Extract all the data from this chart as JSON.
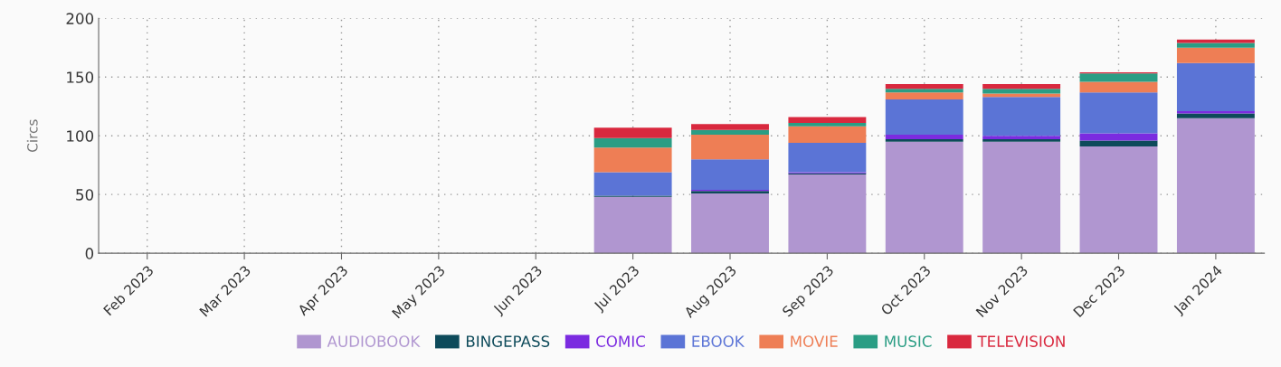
{
  "chart_data": {
    "type": "bar",
    "stacked": true,
    "ylabel": "Circs",
    "categories": [
      "Feb 2023",
      "Mar 2023",
      "Apr 2023",
      "May 2023",
      "Jun 2023",
      "Jul 2023",
      "Aug 2023",
      "Sep 2023",
      "Oct 2023",
      "Nov 2023",
      "Dec 2023",
      "Jan 2024"
    ],
    "series": [
      {
        "name": "AUDIOBOOK",
        "color": "#b096d0",
        "values": [
          0,
          0,
          0,
          0,
          0,
          48,
          51,
          67,
          95,
          95,
          91,
          115
        ]
      },
      {
        "name": "BINGEPASS",
        "color": "#0d4a5a",
        "values": [
          0,
          0,
          0,
          0,
          0,
          1,
          2,
          1,
          2,
          2,
          5,
          4
        ]
      },
      {
        "name": "COMIC",
        "color": "#7b2be0",
        "values": [
          0,
          0,
          0,
          0,
          0,
          0,
          1,
          1,
          4,
          3,
          6,
          2
        ]
      },
      {
        "name": "EBOOK",
        "color": "#5b74d6",
        "values": [
          0,
          0,
          0,
          0,
          0,
          20,
          26,
          25,
          30,
          33,
          35,
          41
        ]
      },
      {
        "name": "MOVIE",
        "color": "#ee7e55",
        "values": [
          0,
          0,
          0,
          0,
          0,
          21,
          21,
          14,
          6,
          3,
          9,
          13
        ]
      },
      {
        "name": "MUSIC",
        "color": "#2a9d84",
        "values": [
          0,
          0,
          0,
          0,
          0,
          8,
          4,
          3,
          3,
          4,
          7,
          4
        ]
      },
      {
        "name": "TELEVISION",
        "color": "#d9283e",
        "values": [
          0,
          0,
          0,
          0,
          0,
          9,
          5,
          5,
          4,
          4,
          1,
          3
        ]
      }
    ],
    "ylim": [
      0,
      200
    ],
    "yticks": [
      0,
      50,
      100,
      150,
      200
    ],
    "grid": true,
    "legend": "bottom"
  }
}
